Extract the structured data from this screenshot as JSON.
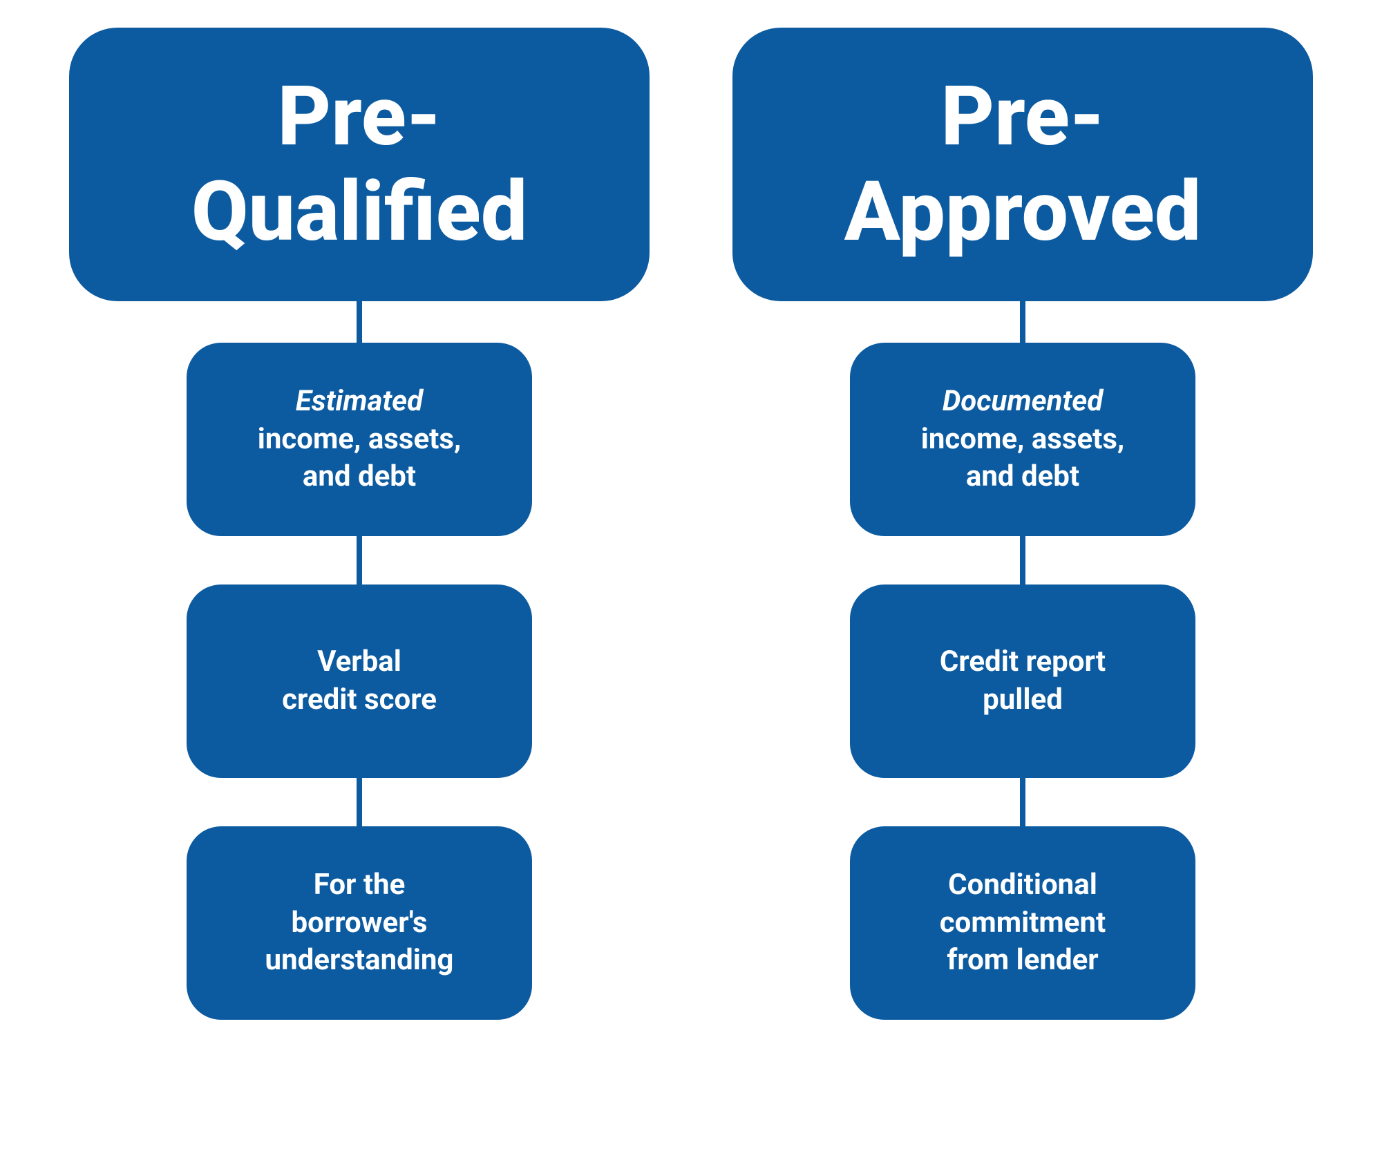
{
  "diagram": {
    "type": "flowchart",
    "background_color": "#ffffff",
    "box_color": "#0c5ba0",
    "text_color": "#ffffff",
    "header_fontsize": 120,
    "detail_fontsize": 42,
    "header_border_radius": 70,
    "detail_border_radius": 50,
    "connector_width": 8,
    "connector_height_first": 60,
    "connector_height_rest": 70,
    "detail_box_width": 500,
    "detail_box_height": 280,
    "columns": [
      {
        "id": "pre-qualified",
        "header": {
          "line1": "Pre-",
          "line2": "Qualified"
        },
        "details": [
          {
            "emphasis": "Estimated",
            "rest_line1": "income, assets,",
            "rest_line2": "and debt"
          },
          {
            "line1": "Verbal",
            "line2": "credit score"
          },
          {
            "line1": "For the",
            "line2": "borrower's",
            "line3": "understanding"
          }
        ]
      },
      {
        "id": "pre-approved",
        "header": {
          "line1": "Pre-",
          "line2": "Approved"
        },
        "details": [
          {
            "emphasis": "Documented",
            "rest_line1": "income, assets,",
            "rest_line2": "and debt"
          },
          {
            "line1": "Credit report",
            "line2": "pulled"
          },
          {
            "line1": "Conditional",
            "line2": "commitment",
            "line3": "from lender"
          }
        ]
      }
    ]
  }
}
